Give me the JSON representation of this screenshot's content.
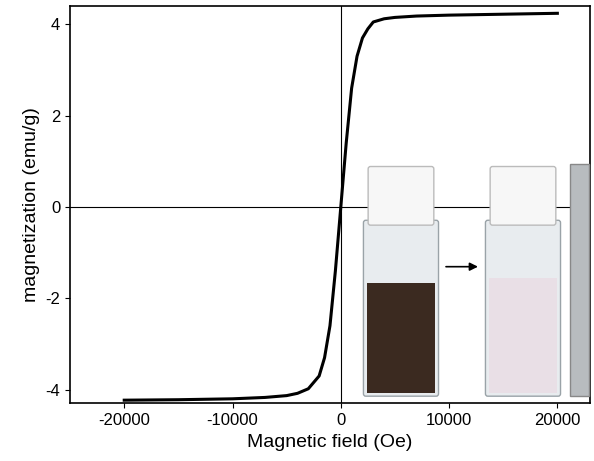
{
  "chart_data": {
    "type": "line",
    "x_label": "Magnetic field (Oe)",
    "y_label": "magnetization (emu/g)",
    "x": [
      -20000,
      -15000,
      -10000,
      -7000,
      -5000,
      -4000,
      -3000,
      -2000,
      -1500,
      -1000,
      -500,
      0,
      500,
      1000,
      1500,
      2000,
      2500,
      3000,
      4000,
      5000,
      7000,
      10000,
      15000,
      20000
    ],
    "values": [
      -4.23,
      -4.22,
      -4.2,
      -4.17,
      -4.13,
      -4.08,
      -3.98,
      -3.7,
      -3.3,
      -2.6,
      -1.4,
      0,
      1.4,
      2.6,
      3.3,
      3.7,
      3.9,
      4.05,
      4.12,
      4.15,
      4.18,
      4.2,
      4.22,
      4.24
    ],
    "color": "#000000",
    "xlim": [
      -25000,
      23000
    ],
    "ylim": [
      -4.3,
      4.4
    ],
    "xticks": [
      -20000,
      -10000,
      0,
      10000,
      20000
    ],
    "yticks": [
      -4,
      -2,
      0,
      2,
      4
    ],
    "grid": false
  }
}
